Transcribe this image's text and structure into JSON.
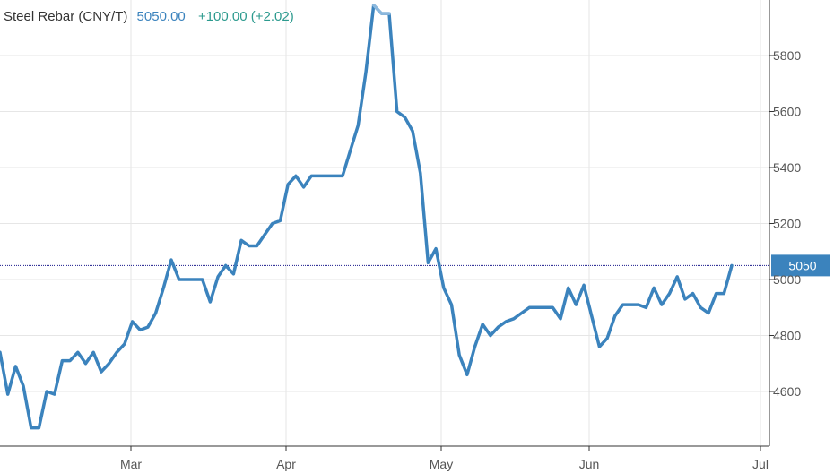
{
  "legend": {
    "name": "Steel Rebar (CNY/T)",
    "last": "5050.00",
    "change": "+100.00 (+2.02)"
  },
  "colors": {
    "line": "#3b83bd",
    "line_highlight": "#8cb8dd",
    "grid": "#e6e6e6",
    "axis": "#333333",
    "ref_line": "#1a1a8c",
    "badge": "#3b83bd"
  },
  "chart_data": {
    "type": "line",
    "title": "Steel Rebar (CNY/T)",
    "xlabel": "",
    "ylabel": "",
    "x_ticks": [
      "Mar",
      "Apr",
      "May",
      "Jun",
      "Jul"
    ],
    "y_ticks": [
      4600,
      4800,
      5000,
      5200,
      5400,
      5600,
      5800
    ],
    "ylim": [
      4450,
      5950
    ],
    "grid": true,
    "reference_line": {
      "value": 5050,
      "label": "5050"
    },
    "series": [
      {
        "values": [
          4740,
          4590,
          4690,
          4620,
          4470,
          4470,
          4600,
          4590,
          4710,
          4710,
          4740,
          4700,
          4740,
          4670,
          4700,
          4740,
          4770,
          4850,
          4820,
          4830,
          4880,
          4970,
          5070,
          5000,
          5000,
          5000,
          5000,
          4920,
          5010,
          5050,
          5020,
          5140,
          5120,
          5120,
          5160,
          5200,
          5210,
          5340,
          5370,
          5330,
          5370,
          5370,
          5370,
          5370,
          5370,
          5460,
          5550,
          5740,
          5980,
          5950,
          5950,
          5600,
          5580,
          5530,
          5380,
          5060,
          5110,
          4970,
          4910,
          4730,
          4660,
          4760,
          4840,
          4800,
          4830,
          4850,
          4860,
          4880,
          4900,
          4900,
          4900,
          4900,
          4860,
          4970,
          4910,
          4980,
          4870,
          4760,
          4790,
          4870,
          4910,
          4910,
          4910,
          4900,
          4970,
          4910,
          4950,
          5010,
          4930,
          4950,
          4900,
          4880,
          4950,
          4950,
          5050
        ],
        "highlight_range": [
          48,
          50
        ]
      }
    ]
  }
}
